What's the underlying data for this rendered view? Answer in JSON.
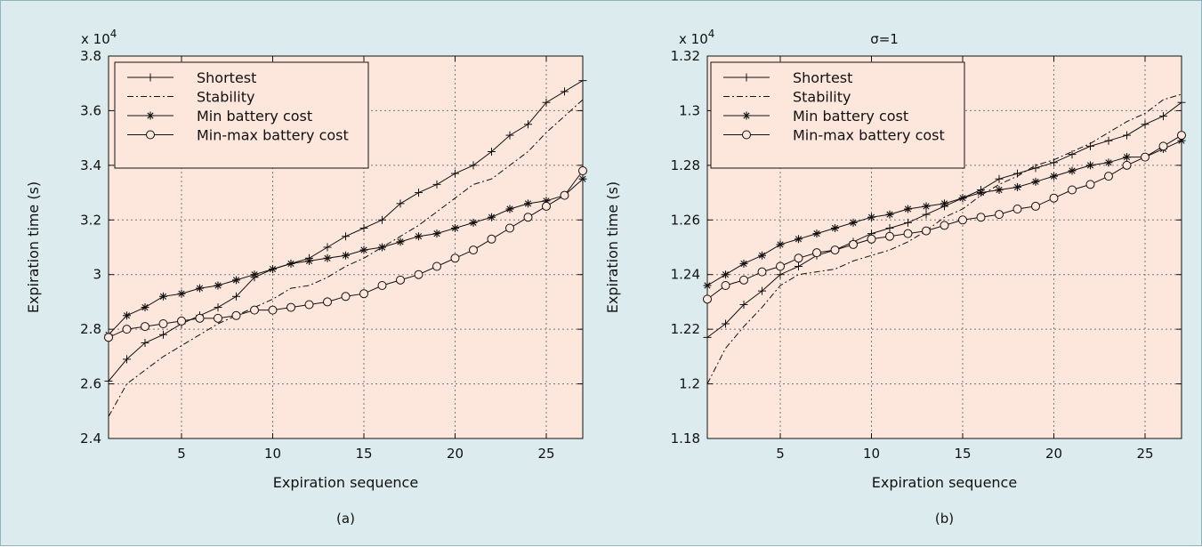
{
  "colors": {
    "background": "#dcecee",
    "plot_area": "#fde6dc",
    "legend_box": "#fde6dc",
    "line": "#111111",
    "grid": "#777777"
  },
  "chart_data": [
    {
      "type": "line",
      "panel_label": "(a)",
      "title": "",
      "xlabel": "Expiration sequence",
      "ylabel": "Expiration time (s)",
      "y_multiplier": "x 10",
      "y_multiplier_exp": "4",
      "xlim": [
        1,
        27
      ],
      "ylim": [
        2.4,
        3.8
      ],
      "xticks": [
        5,
        10,
        15,
        20,
        25
      ],
      "yticks": [
        2.4,
        2.6,
        2.8,
        3.0,
        3.2,
        3.4,
        3.6,
        3.8
      ],
      "ytick_labels": [
        "2.4",
        "2.6",
        "2.8",
        "3",
        "3.2",
        "3.4",
        "3.6",
        "3.8"
      ],
      "grid": true,
      "legend_position": "top-left",
      "x": [
        1,
        2,
        3,
        4,
        5,
        6,
        7,
        8,
        9,
        10,
        11,
        12,
        13,
        14,
        15,
        16,
        17,
        18,
        19,
        20,
        21,
        22,
        23,
        24,
        25,
        26,
        27
      ],
      "series": [
        {
          "name": "Shortest",
          "style": "solid",
          "marker": "plus",
          "values": [
            2.61,
            2.69,
            2.75,
            2.78,
            2.82,
            2.85,
            2.88,
            2.92,
            2.99,
            3.02,
            3.04,
            3.06,
            3.1,
            3.14,
            3.17,
            3.2,
            3.26,
            3.3,
            3.33,
            3.37,
            3.4,
            3.45,
            3.51,
            3.55,
            3.63,
            3.67,
            3.71
          ]
        },
        {
          "name": "Stability",
          "style": "dashdot",
          "marker": "none",
          "values": [
            2.48,
            2.6,
            2.65,
            2.7,
            2.74,
            2.78,
            2.82,
            2.85,
            2.88,
            2.91,
            2.95,
            2.96,
            2.99,
            3.03,
            3.06,
            3.1,
            3.14,
            3.18,
            3.23,
            3.28,
            3.33,
            3.35,
            3.4,
            3.45,
            3.52,
            3.58,
            3.64
          ]
        },
        {
          "name": "Min battery cost",
          "style": "solid",
          "marker": "asterisk",
          "values": [
            2.78,
            2.85,
            2.88,
            2.92,
            2.93,
            2.95,
            2.96,
            2.98,
            3.0,
            3.02,
            3.04,
            3.05,
            3.06,
            3.07,
            3.09,
            3.1,
            3.12,
            3.14,
            3.15,
            3.17,
            3.19,
            3.21,
            3.24,
            3.26,
            3.27,
            3.29,
            3.35
          ]
        },
        {
          "name": "Min-max battery cost",
          "style": "solid",
          "marker": "circle",
          "values": [
            2.77,
            2.8,
            2.81,
            2.82,
            2.83,
            2.84,
            2.84,
            2.85,
            2.87,
            2.87,
            2.88,
            2.89,
            2.9,
            2.92,
            2.93,
            2.96,
            2.98,
            3.0,
            3.03,
            3.06,
            3.09,
            3.13,
            3.17,
            3.21,
            3.25,
            3.29,
            3.38
          ]
        }
      ]
    },
    {
      "type": "line",
      "panel_label": "(b)",
      "title": "σ=1",
      "xlabel": "Expiration sequence",
      "ylabel": "Expiration time (s)",
      "y_multiplier": "x 10",
      "y_multiplier_exp": "4",
      "xlim": [
        1,
        27
      ],
      "ylim": [
        1.18,
        1.32
      ],
      "xticks": [
        5,
        10,
        15,
        20,
        25
      ],
      "yticks": [
        1.18,
        1.2,
        1.22,
        1.24,
        1.26,
        1.28,
        1.3,
        1.32
      ],
      "ytick_labels": [
        "1.18",
        "1.2",
        "1.22",
        "1.24",
        "1.26",
        "1.28",
        "1.3",
        "1.32"
      ],
      "grid": true,
      "legend_position": "top-left",
      "x": [
        1,
        2,
        3,
        4,
        5,
        6,
        7,
        8,
        9,
        10,
        11,
        12,
        13,
        14,
        15,
        16,
        17,
        18,
        19,
        20,
        21,
        22,
        23,
        24,
        25,
        26,
        27
      ],
      "series": [
        {
          "name": "Shortest",
          "style": "solid",
          "marker": "plus",
          "values": [
            1.217,
            1.222,
            1.229,
            1.234,
            1.24,
            1.243,
            1.247,
            1.249,
            1.252,
            1.255,
            1.257,
            1.259,
            1.262,
            1.265,
            1.268,
            1.271,
            1.275,
            1.277,
            1.279,
            1.281,
            1.284,
            1.287,
            1.289,
            1.291,
            1.295,
            1.298,
            1.303
          ]
        },
        {
          "name": "Stability",
          "style": "dashdot",
          "marker": "none",
          "values": [
            1.2,
            1.213,
            1.221,
            1.228,
            1.236,
            1.24,
            1.241,
            1.242,
            1.245,
            1.247,
            1.249,
            1.252,
            1.256,
            1.261,
            1.264,
            1.269,
            1.273,
            1.276,
            1.28,
            1.282,
            1.285,
            1.288,
            1.292,
            1.296,
            1.299,
            1.304,
            1.306
          ]
        },
        {
          "name": "Min battery cost",
          "style": "solid",
          "marker": "asterisk",
          "values": [
            1.236,
            1.24,
            1.244,
            1.247,
            1.251,
            1.253,
            1.255,
            1.257,
            1.259,
            1.261,
            1.262,
            1.264,
            1.265,
            1.266,
            1.268,
            1.27,
            1.271,
            1.272,
            1.274,
            1.276,
            1.278,
            1.28,
            1.281,
            1.283,
            1.283,
            1.286,
            1.289
          ]
        },
        {
          "name": "Min-max battery cost",
          "style": "solid",
          "marker": "circle",
          "values": [
            1.231,
            1.236,
            1.238,
            1.241,
            1.243,
            1.246,
            1.248,
            1.249,
            1.251,
            1.253,
            1.254,
            1.255,
            1.256,
            1.258,
            1.26,
            1.261,
            1.262,
            1.264,
            1.265,
            1.268,
            1.271,
            1.273,
            1.276,
            1.28,
            1.283,
            1.287,
            1.291
          ]
        }
      ]
    }
  ]
}
